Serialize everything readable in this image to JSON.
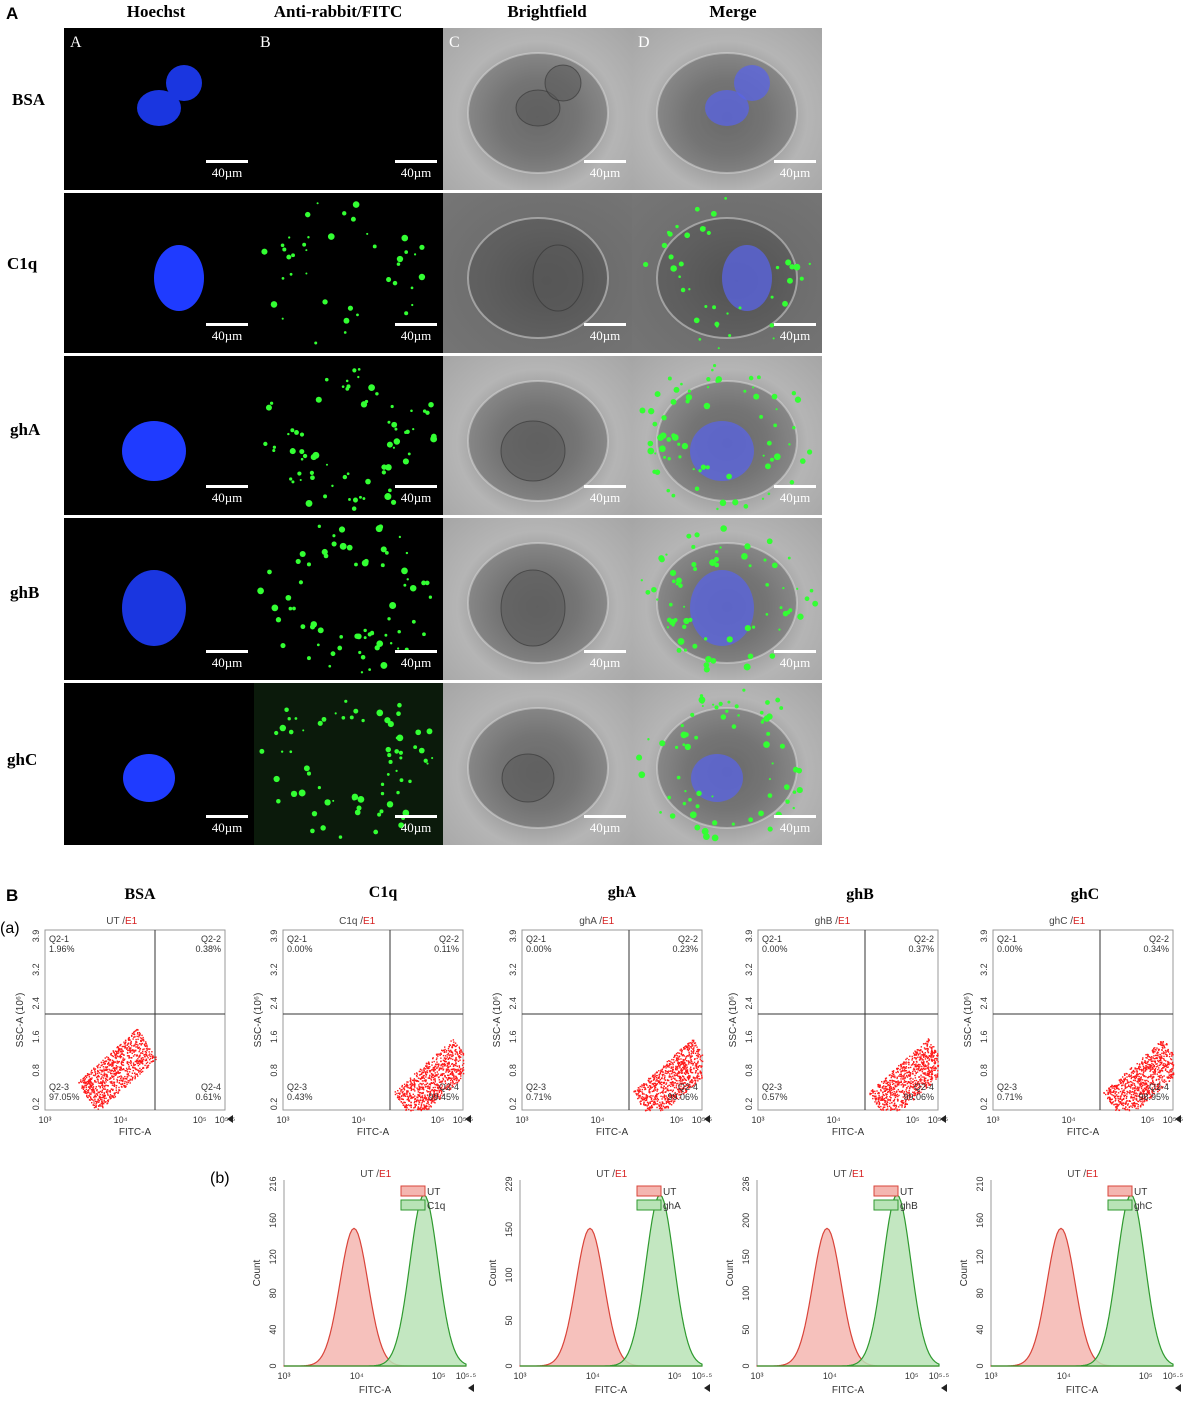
{
  "panel_A": {
    "label": "A",
    "columns": [
      "Hoechst",
      "Anti-rabbit/FITC",
      "Brightfield",
      "Merge"
    ],
    "sub_letters": [
      "A",
      "B",
      "C",
      "D"
    ],
    "rows": [
      "BSA",
      "C1q",
      "ghA",
      "ghB",
      "ghC"
    ],
    "scale_label": "40µm"
  },
  "panel_B": {
    "label": "B",
    "sub_a": "(a)",
    "sub_b": "(b)",
    "condition_titles": [
      "BSA",
      "C1q",
      "ghA",
      "ghB",
      "ghC"
    ],
    "scatter_plots": [
      {
        "title": "UT",
        "gate": "E1",
        "q1": "Q2-1",
        "q1v": "1.96%",
        "q2": "Q2-2",
        "q2v": "0.38%",
        "q3": "Q2-3",
        "q3v": "97.05%",
        "q4": "Q2-4",
        "q4v": "0.61%"
      },
      {
        "title": "C1q",
        "gate": "E1",
        "q1": "Q2-1",
        "q1v": "0.00%",
        "q2": "Q2-2",
        "q2v": "0.11%",
        "q3": "Q2-3",
        "q3v": "0.43%",
        "q4": "Q2-4",
        "q4v": "99.45%"
      },
      {
        "title": "ghA",
        "gate": "E1",
        "q1": "Q2-1",
        "q1v": "0.00%",
        "q2": "Q2-2",
        "q2v": "0.23%",
        "q3": "Q2-3",
        "q3v": "0.71%",
        "q4": "Q2-4",
        "q4v": "99.06%"
      },
      {
        "title": "ghB",
        "gate": "E1",
        "q1": "Q2-1",
        "q1v": "0.00%",
        "q2": "Q2-2",
        "q2v": "0.37%",
        "q3": "Q2-3",
        "q3v": "0.57%",
        "q4": "Q2-4",
        "q4v": "99.06%"
      },
      {
        "title": "ghC",
        "gate": "E1",
        "q1": "Q2-1",
        "q1v": "0.00%",
        "q2": "Q2-2",
        "q2v": "0.34%",
        "q3": "Q2-3",
        "q3v": "0.71%",
        "q4": "Q2-4",
        "q4v": "98.95%"
      }
    ],
    "scatter_axes": {
      "ylabel": "SSC-A (10⁶)",
      "xlabel": "FITC-A",
      "yticks": [
        "0.2",
        "0.8",
        "1.6",
        "2.4",
        "3.2",
        "3.9"
      ],
      "xticks": [
        "10³",
        "10⁴",
        "10⁵",
        "10⁵·⁵"
      ]
    },
    "histograms": [
      {
        "title": "UT",
        "gate": "E1",
        "legend": [
          "UT",
          "C1q"
        ],
        "ymax": "216",
        "yticks": [
          "0",
          "40",
          "80",
          "120",
          "160",
          "216"
        ]
      },
      {
        "title": "UT",
        "gate": "E1",
        "legend": [
          "UT",
          "ghA"
        ],
        "ymax": "229",
        "yticks": [
          "0",
          "50",
          "100",
          "150",
          "229"
        ]
      },
      {
        "title": "UT",
        "gate": "E1",
        "legend": [
          "UT",
          "ghB"
        ],
        "ymax": "236",
        "yticks": [
          "0",
          "50",
          "100",
          "150",
          "200",
          "236"
        ]
      },
      {
        "title": "UT",
        "gate": "E1",
        "legend": [
          "UT",
          "ghC"
        ],
        "ymax": "210",
        "yticks": [
          "0",
          "40",
          "80",
          "120",
          "160",
          "210"
        ]
      }
    ],
    "hist_axes": {
      "ylabel": "Count",
      "xlabel": "FITC-A",
      "xticks": [
        "10³",
        "10⁴",
        "10⁵",
        "10⁵·⁵"
      ]
    },
    "colors": {
      "dots": "#ff1a1a",
      "ut_fill": "#f4b6b0",
      "ut_line": "#d9443a",
      "test_fill": "#b8e3b6",
      "test_line": "#2f9a2f",
      "gate": "#d61f1f"
    }
  }
}
